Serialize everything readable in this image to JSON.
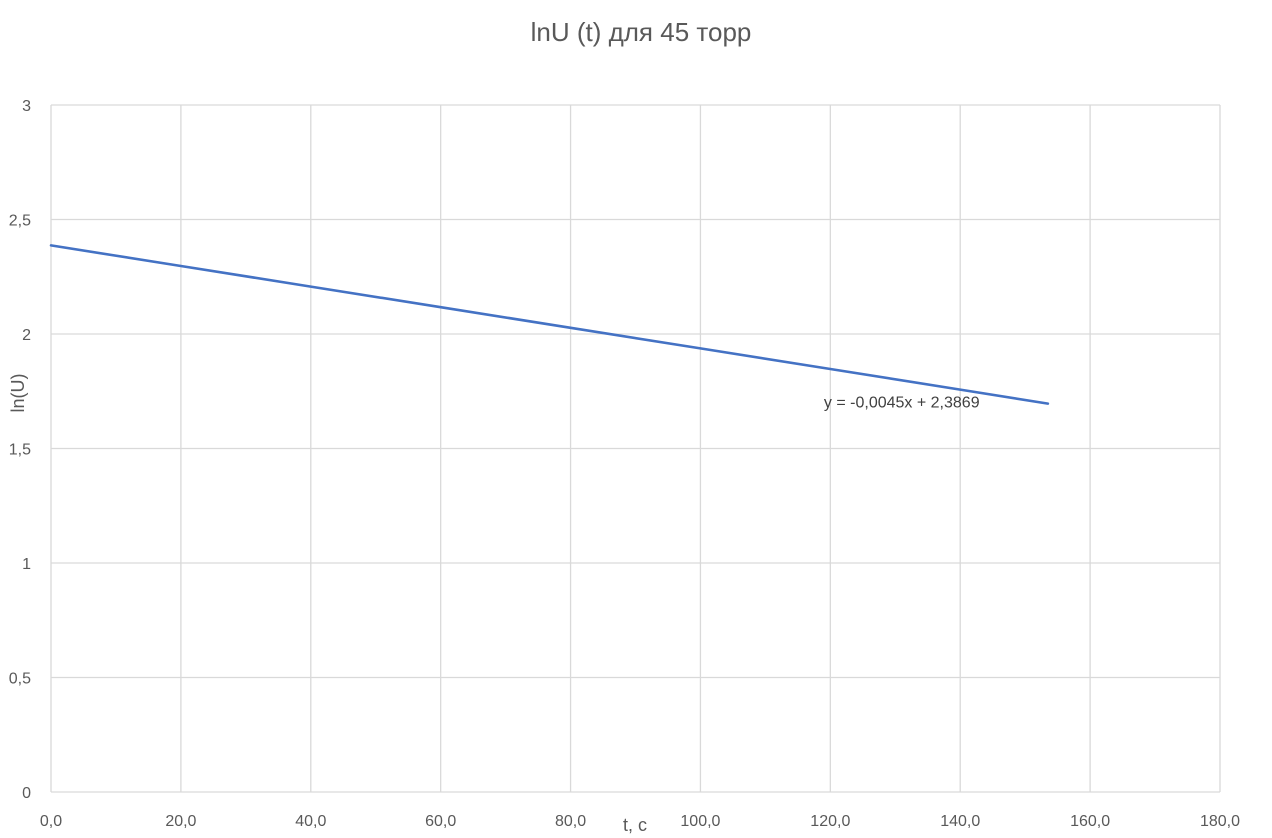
{
  "chart_data": {
    "type": "line",
    "title": "lnU (t) для 45 торр",
    "xlabel": "t, c",
    "ylabel": "ln(U)",
    "xlim": [
      0,
      180
    ],
    "ylim": [
      0,
      3
    ],
    "x_ticks": [
      0,
      20,
      40,
      60,
      80,
      100,
      120,
      140,
      160,
      180
    ],
    "x_tick_labels": [
      "0,0",
      "20,0",
      "40,0",
      "60,0",
      "80,0",
      "100,0",
      "120,0",
      "140,0",
      "160,0",
      "180,0"
    ],
    "y_ticks": [
      0,
      0.5,
      1,
      1.5,
      2,
      2.5,
      3
    ],
    "y_tick_labels": [
      "0",
      "0,5",
      "1",
      "1,5",
      "2",
      "2,5",
      "3"
    ],
    "grid": true,
    "series": [
      {
        "color": "#4472c4",
        "x": [
          0,
          20,
          40,
          60,
          80,
          100,
          120,
          140,
          153.5
        ],
        "y": [
          2.387,
          2.297,
          2.207,
          2.117,
          2.027,
          1.937,
          1.847,
          1.757,
          1.696
        ]
      }
    ],
    "trendline": {
      "label": "y = -0,0045x + 2,3869",
      "slope": -0.0045,
      "intercept": 2.3869,
      "anchor_x": 131,
      "anchor_y": 1.68
    }
  }
}
